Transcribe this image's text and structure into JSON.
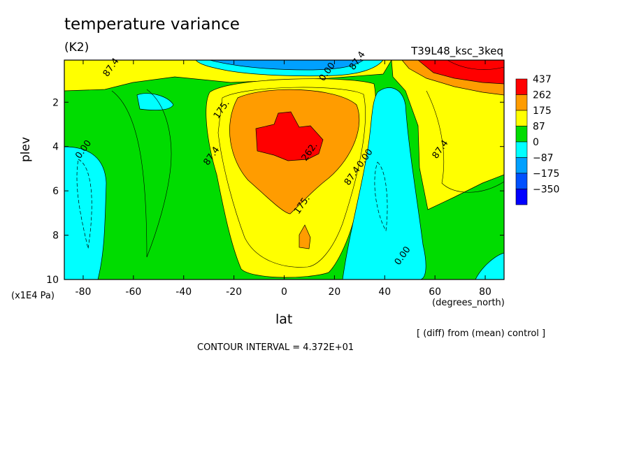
{
  "chart_data": {
    "type": "heatmap",
    "title": "temperature variance",
    "units": "(K2)",
    "run_name": "T39L48_ksc_3keq",
    "xlabel": "lat",
    "x_units": "(degrees_north)",
    "ylabel": "plev",
    "y_units": "(x1E4 Pa)",
    "xlim": [
      -87.5,
      87.5
    ],
    "ylim": [
      10,
      0.1
    ],
    "x_ticks": [
      -80,
      -60,
      -40,
      -20,
      0,
      20,
      40,
      60,
      80
    ],
    "y_ticks": [
      2,
      4,
      6,
      8,
      10
    ],
    "levels": [
      {
        "label": "437",
        "color": "#ff0000"
      },
      {
        "label": "262",
        "color": "#ff9c00"
      },
      {
        "label": "175",
        "color": "#ffff00"
      },
      {
        "label": "87",
        "color": "#00dc00"
      },
      {
        "label": "0",
        "color": "#00ffff"
      },
      {
        "label": "−87",
        "color": "#00a0ff"
      },
      {
        "label": "−175",
        "color": "#0050ff"
      },
      {
        "label": "−350",
        "color": "#0000ff"
      }
    ],
    "contour_labels": [
      {
        "text": "87.4",
        "lat": -68,
        "plev": 0.5
      },
      {
        "text": "0.00",
        "lat": 18,
        "plev": 0.7
      },
      {
        "text": "87.4",
        "lat": 30,
        "plev": 0.2
      },
      {
        "text": "175.",
        "lat": -24,
        "plev": 2.4
      },
      {
        "text": "0.00",
        "lat": -79,
        "plev": 4.2
      },
      {
        "text": "87.4",
        "lat": -28,
        "plev": 4.5
      },
      {
        "text": "262.",
        "lat": 11,
        "plev": 4.3
      },
      {
        "text": "87.4",
        "lat": 28,
        "plev": 5.4
      },
      {
        "text": "0.00",
        "lat": 33,
        "plev": 4.6
      },
      {
        "text": "87.4",
        "lat": 63,
        "plev": 4.2
      },
      {
        "text": "175.",
        "lat": 8,
        "plev": 6.7
      },
      {
        "text": "0.00",
        "lat": 48,
        "plev": 9.0
      }
    ],
    "annotations": [
      "[ (diff) from (mean) control ]",
      "CONTOUR INTERVAL = 4.372E+01"
    ]
  }
}
